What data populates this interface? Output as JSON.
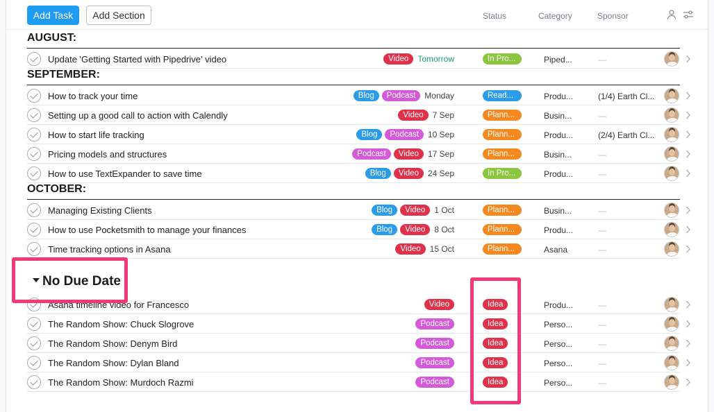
{
  "toolbar": {
    "add_task_label": "Add Task",
    "add_section_label": "Add Section",
    "columns": {
      "status": "Status",
      "category": "Category",
      "sponsor": "Sponsor"
    }
  },
  "sections": [
    {
      "title": "AUGUST:",
      "rows": [
        {
          "name": "Update 'Getting Started with Pipedrive' video",
          "tags": [
            "Video"
          ],
          "date": "Tomorrow",
          "date_green": true,
          "status": "In Pro...",
          "status_kind": "progress",
          "category": "Piped...",
          "sponsor": "—"
        }
      ]
    },
    {
      "title": "SEPTEMBER:",
      "rows": [
        {
          "name": "How to track your time",
          "tags": [
            "Blog",
            "Podcast"
          ],
          "date": "Monday",
          "status": "Read...",
          "status_kind": "ready",
          "category": "Produ...",
          "sponsor": "(1/4) Earth Cl..."
        },
        {
          "name": "Setting up a good call to action with Calendly",
          "tags": [
            "Video"
          ],
          "date": "7 Sep",
          "status": "Plann...",
          "status_kind": "plan",
          "category": "Busin...",
          "sponsor": "—"
        },
        {
          "name": "How to start life tracking",
          "tags": [
            "Blog",
            "Podcast"
          ],
          "date": "10 Sep",
          "status": "Plann...",
          "status_kind": "plan",
          "category": "Produ...",
          "sponsor": "(2/4) Earth Cl..."
        },
        {
          "name": "Pricing models and structures",
          "tags": [
            "Podcast",
            "Video"
          ],
          "date": "17 Sep",
          "status": "Plann...",
          "status_kind": "plan",
          "category": "Busin...",
          "sponsor": "—"
        },
        {
          "name": "How to use TextExpander to save time",
          "tags": [
            "Blog",
            "Video"
          ],
          "date": "24 Sep",
          "status": "In Pro...",
          "status_kind": "progress",
          "category": "Produ...",
          "sponsor": "—"
        }
      ]
    },
    {
      "title": "OCTOBER:",
      "rows": [
        {
          "name": "Managing Existing Clients",
          "tags": [
            "Blog",
            "Video"
          ],
          "date": "1 Oct",
          "status": "Plann...",
          "status_kind": "plan",
          "category": "Busin...",
          "sponsor": "—"
        },
        {
          "name": "How to use Pocketsmith to manage your finances",
          "tags": [
            "Blog",
            "Video"
          ],
          "date": "8 Oct",
          "status": "Plann...",
          "status_kind": "plan",
          "category": "Produ...",
          "sponsor": "—"
        },
        {
          "name": "Time tracking options in Asana",
          "tags": [
            "Video"
          ],
          "date": "15 Oct",
          "status": "Plann...",
          "status_kind": "plan",
          "category": "Asana",
          "sponsor": "—"
        }
      ]
    }
  ],
  "no_due": {
    "title": "No Due Date",
    "rows": [
      {
        "name": "Asana timeline video for Francesco",
        "tags": [
          "Video"
        ],
        "date": "",
        "status": "Idea",
        "status_kind": "idea",
        "category": "Produ...",
        "sponsor": "—"
      },
      {
        "name": "The Random Show: Chuck Slogrove",
        "tags": [
          "Podcast"
        ],
        "date": "",
        "status": "Idea",
        "status_kind": "idea",
        "category": "Perso...",
        "sponsor": "—"
      },
      {
        "name": "The Random Show: Denym Bird",
        "tags": [
          "Podcast"
        ],
        "date": "",
        "status": "Idea",
        "status_kind": "idea",
        "category": "Perso...",
        "sponsor": "—"
      },
      {
        "name": "The Random Show: Dylan Bland",
        "tags": [
          "Podcast"
        ],
        "date": "",
        "status": "Idea",
        "status_kind": "idea",
        "category": "Perso...",
        "sponsor": "—"
      },
      {
        "name": "The Random Show: Murdoch Razmi",
        "tags": [
          "Podcast"
        ],
        "date": "",
        "status": "Idea",
        "status_kind": "idea",
        "category": "Perso...",
        "sponsor": "—"
      }
    ]
  },
  "colors": {
    "accent": "#1f9bf0",
    "highlight": "#f43a75",
    "video": "#e0314b",
    "blog": "#2b9ce7",
    "podcast": "#d45ad9",
    "in_progress": "#8cc63f",
    "planned": "#f5891f"
  },
  "icons": {
    "assignee": "person-icon",
    "filter": "sliders-icon",
    "row_open": "chevron-right-icon",
    "complete": "checkmark-circle-icon"
  }
}
